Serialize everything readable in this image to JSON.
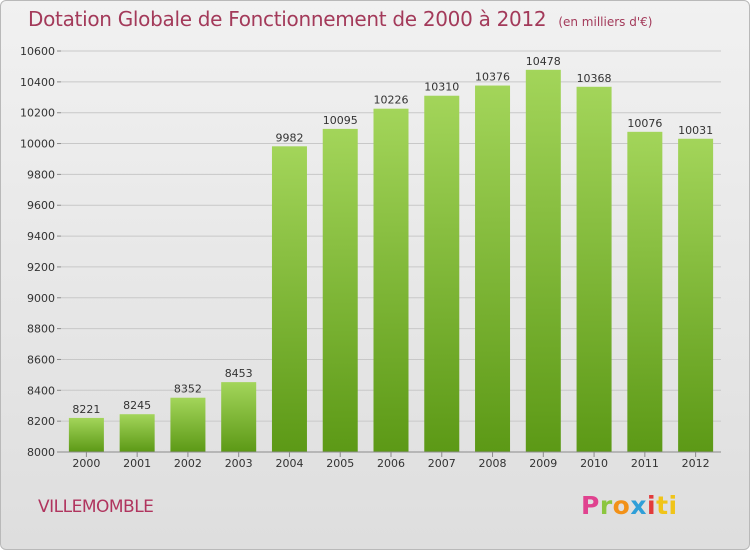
{
  "header": {
    "title": "Dotation Globale de Fonctionnement de 2000 à 2012",
    "unit": "(en milliers d'€)"
  },
  "footer": {
    "city": "VILLEMOMBLE",
    "logo": [
      "P",
      "r",
      "o",
      "x",
      "i",
      "ti"
    ]
  },
  "colors": {
    "bar_top": "#a3d55a",
    "bar_bottom": "#5c9916",
    "title": "#a33a5a",
    "grid": "#c8c8c8"
  },
  "chart_data": {
    "type": "bar",
    "title": "Dotation Globale de Fonctionnement de 2000 à 2012",
    "subtitle": "(en milliers d'€)",
    "xlabel": "",
    "ylabel": "",
    "categories": [
      "2000",
      "2001",
      "2002",
      "2003",
      "2004",
      "2005",
      "2006",
      "2007",
      "2008",
      "2009",
      "2010",
      "2011",
      "2012"
    ],
    "values": [
      8221,
      8245,
      8352,
      8453,
      9982,
      10095,
      10226,
      10310,
      10376,
      10478,
      10368,
      10076,
      10031
    ],
    "data_labels": [
      "8221",
      "8245",
      "8352",
      "8453",
      "9982",
      "10095",
      "10226",
      "10310",
      "10376",
      "10478",
      "10368",
      "10076",
      "10031"
    ],
    "ylim": [
      8000,
      10600
    ],
    "yticks": [
      8000,
      8200,
      8400,
      8600,
      8800,
      9000,
      9200,
      9400,
      9600,
      9800,
      10000,
      10200,
      10400,
      10600
    ],
    "grid": true,
    "legend": "none"
  }
}
